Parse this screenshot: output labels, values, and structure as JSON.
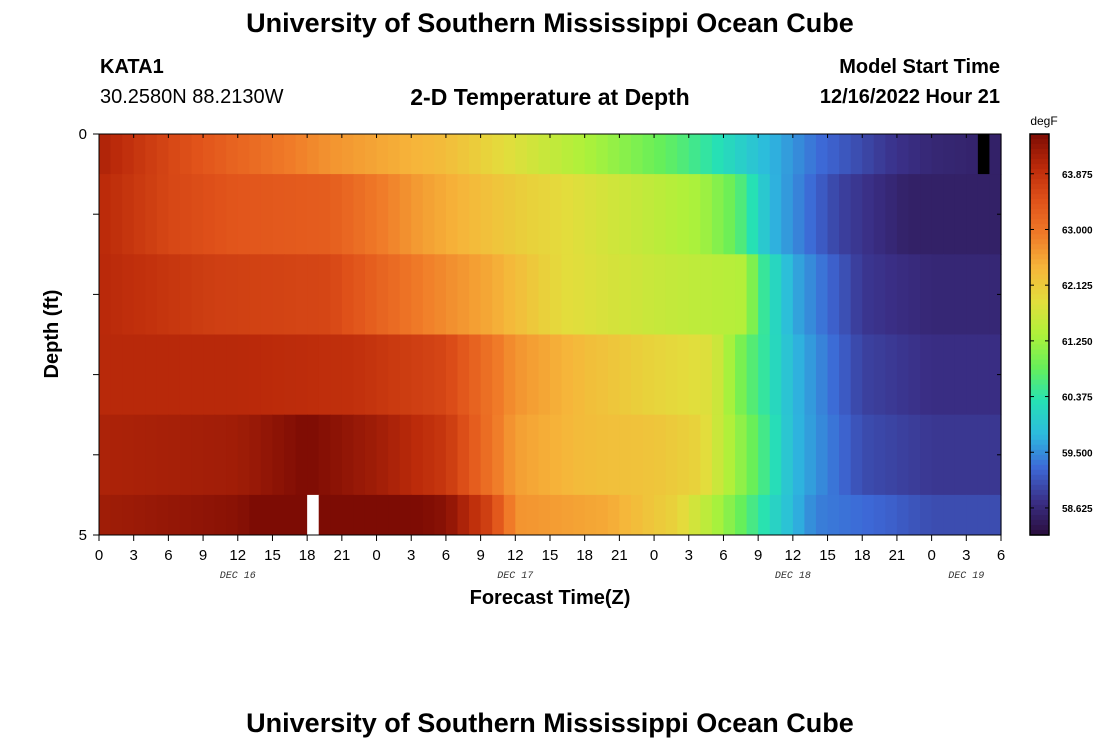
{
  "header": {
    "title": "University of Southern Mississippi Ocean Cube",
    "station": "KATA1",
    "coords": "30.2580N  88.2130W",
    "subtitle": "2-D Temperature at Depth",
    "model_start_label": "Model Start Time",
    "model_start_value": "12/16/2022 Hour 21"
  },
  "footer": {
    "title": "University of Southern Mississippi Ocean Cube"
  },
  "chart_data": {
    "type": "heatmap",
    "xlabel": "Forecast Time(Z)",
    "ylabel": "Depth (ft)",
    "x_tick_labels": [
      "0",
      "3",
      "6",
      "9",
      "12",
      "15",
      "18",
      "21",
      "0",
      "3",
      "6",
      "9",
      "12",
      "15",
      "18",
      "21",
      "0",
      "3",
      "6",
      "9",
      "12",
      "15",
      "18",
      "21",
      "0",
      "3",
      "6"
    ],
    "day_labels": [
      {
        "label": "DEC 16",
        "hour": 12
      },
      {
        "label": "DEC 17",
        "hour": 36
      },
      {
        "label": "DEC 18",
        "hour": 60
      },
      {
        "label": "DEC 19",
        "hour": 75
      }
    ],
    "y_tick_labels": [
      "0",
      "5"
    ],
    "ylim": [
      0,
      5
    ],
    "xlim_hours": [
      0,
      78
    ],
    "colorbar": {
      "unit": "degF",
      "range": [
        58.2,
        64.5
      ],
      "tick_labels": [
        "63.875",
        "63.000",
        "62.125",
        "61.250",
        "60.375",
        "59.500",
        "58.625"
      ],
      "colors": [
        "#2a0e3d",
        "#3a2f86",
        "#3d68d6",
        "#2db9df",
        "#26e1b4",
        "#66ef5a",
        "#aef13a",
        "#e3dd3c",
        "#f6b53a",
        "#f07a28",
        "#e0521a",
        "#bb2a0a",
        "#7d0c04"
      ]
    },
    "depth_rows": [
      {
        "depth": "0-0.5",
        "keys": [
          [
            0,
            64.1
          ],
          [
            6,
            63.6
          ],
          [
            12,
            63.2
          ],
          [
            20,
            62.7
          ],
          [
            30,
            62.3
          ],
          [
            36,
            61.8
          ],
          [
            44,
            61.2
          ],
          [
            50,
            60.7
          ],
          [
            56,
            60.0
          ],
          [
            62,
            59.3
          ],
          [
            68,
            58.8
          ],
          [
            72,
            58.6
          ],
          [
            78,
            58.5
          ]
        ]
      },
      {
        "depth": "0.5-1.5",
        "keys": [
          [
            0,
            64.0
          ],
          [
            6,
            63.6
          ],
          [
            12,
            63.4
          ],
          [
            20,
            63.3
          ],
          [
            28,
            62.6
          ],
          [
            36,
            62.1
          ],
          [
            44,
            61.7
          ],
          [
            52,
            61.3
          ],
          [
            55,
            60.8
          ],
          [
            58,
            59.8
          ],
          [
            64,
            58.9
          ],
          [
            70,
            58.5
          ],
          [
            78,
            58.5
          ]
        ]
      },
      {
        "depth": "1.5-2.5",
        "keys": [
          [
            0,
            64.0
          ],
          [
            10,
            63.7
          ],
          [
            20,
            63.6
          ],
          [
            28,
            62.9
          ],
          [
            34,
            62.5
          ],
          [
            40,
            61.9
          ],
          [
            48,
            61.6
          ],
          [
            56,
            61.4
          ],
          [
            57,
            60.6
          ],
          [
            60,
            59.7
          ],
          [
            66,
            58.8
          ],
          [
            72,
            58.6
          ],
          [
            78,
            58.6
          ]
        ]
      },
      {
        "depth": "2.5-3.5",
        "keys": [
          [
            0,
            64.0
          ],
          [
            12,
            64.0
          ],
          [
            22,
            63.9
          ],
          [
            30,
            63.6
          ],
          [
            36,
            62.7
          ],
          [
            42,
            62.3
          ],
          [
            48,
            62.0
          ],
          [
            53,
            61.8
          ],
          [
            56,
            60.8
          ],
          [
            60,
            59.8
          ],
          [
            66,
            58.9
          ],
          [
            72,
            58.7
          ],
          [
            78,
            58.7
          ]
        ]
      },
      {
        "depth": "3.5-4.5",
        "keys": [
          [
            0,
            64.1
          ],
          [
            12,
            64.2
          ],
          [
            18,
            64.5
          ],
          [
            24,
            64.2
          ],
          [
            30,
            63.8
          ],
          [
            36,
            62.6
          ],
          [
            42,
            62.3
          ],
          [
            48,
            62.2
          ],
          [
            52,
            62.0
          ],
          [
            56,
            61.0
          ],
          [
            60,
            59.8
          ],
          [
            66,
            59.0
          ],
          [
            72,
            58.8
          ],
          [
            78,
            58.8
          ]
        ]
      },
      {
        "depth": "4.5-5",
        "keys": [
          [
            0,
            64.2
          ],
          [
            12,
            64.4
          ],
          [
            15,
            64.6
          ],
          [
            16,
            65.2
          ],
          [
            17,
            65.0
          ],
          [
            19,
            64.8
          ],
          [
            22,
            64.7
          ],
          [
            30,
            64.4
          ],
          [
            34,
            63.6
          ],
          [
            36,
            62.7
          ],
          [
            44,
            62.5
          ],
          [
            50,
            62.0
          ],
          [
            54,
            61.2
          ],
          [
            58,
            60.2
          ],
          [
            62,
            59.4
          ],
          [
            68,
            59.2
          ],
          [
            72,
            59.0
          ],
          [
            78,
            59.0
          ]
        ]
      }
    ],
    "missing_cells": [
      {
        "row": 5,
        "hour": 18,
        "kind": "white"
      },
      {
        "row": 0,
        "hour": 76,
        "kind": "black"
      }
    ]
  }
}
